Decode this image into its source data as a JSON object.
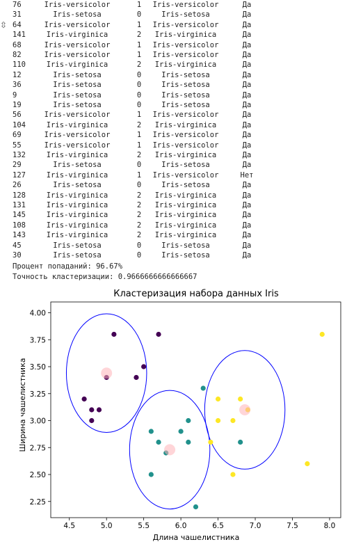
{
  "output": {
    "rows": [
      {
        "idx": "76",
        "true_label": "Iris-versicolor",
        "cluster": "1",
        "predicted": "Iris-versicolor",
        "match": "Да"
      },
      {
        "idx": "31",
        "true_label": "Iris-setosa",
        "cluster": "0",
        "predicted": "Iris-setosa",
        "match": "Да"
      },
      {
        "idx": "64",
        "true_label": "Iris-versicolor",
        "cluster": "1",
        "predicted": "Iris-versicolor",
        "match": "Да"
      },
      {
        "idx": "141",
        "true_label": "Iris-virginica",
        "cluster": "2",
        "predicted": "Iris-virginica",
        "match": "Да"
      },
      {
        "idx": "68",
        "true_label": "Iris-versicolor",
        "cluster": "1",
        "predicted": "Iris-versicolor",
        "match": "Да"
      },
      {
        "idx": "82",
        "true_label": "Iris-versicolor",
        "cluster": "1",
        "predicted": "Iris-versicolor",
        "match": "Да"
      },
      {
        "idx": "110",
        "true_label": "Iris-virginica",
        "cluster": "2",
        "predicted": "Iris-virginica",
        "match": "Да"
      },
      {
        "idx": "12",
        "true_label": "Iris-setosa",
        "cluster": "0",
        "predicted": "Iris-setosa",
        "match": "Да"
      },
      {
        "idx": "36",
        "true_label": "Iris-setosa",
        "cluster": "0",
        "predicted": "Iris-setosa",
        "match": "Да"
      },
      {
        "idx": "9",
        "true_label": "Iris-setosa",
        "cluster": "0",
        "predicted": "Iris-setosa",
        "match": "Да"
      },
      {
        "idx": "19",
        "true_label": "Iris-setosa",
        "cluster": "0",
        "predicted": "Iris-setosa",
        "match": "Да"
      },
      {
        "idx": "56",
        "true_label": "Iris-versicolor",
        "cluster": "1",
        "predicted": "Iris-versicolor",
        "match": "Да"
      },
      {
        "idx": "104",
        "true_label": "Iris-virginica",
        "cluster": "2",
        "predicted": "Iris-virginica",
        "match": "Да"
      },
      {
        "idx": "69",
        "true_label": "Iris-versicolor",
        "cluster": "1",
        "predicted": "Iris-versicolor",
        "match": "Да"
      },
      {
        "idx": "55",
        "true_label": "Iris-versicolor",
        "cluster": "1",
        "predicted": "Iris-versicolor",
        "match": "Да"
      },
      {
        "idx": "132",
        "true_label": "Iris-virginica",
        "cluster": "2",
        "predicted": "Iris-virginica",
        "match": "Да"
      },
      {
        "idx": "29",
        "true_label": "Iris-setosa",
        "cluster": "0",
        "predicted": "Iris-setosa",
        "match": "Да"
      },
      {
        "idx": "127",
        "true_label": "Iris-virginica",
        "cluster": "1",
        "predicted": "Iris-versicolor",
        "match": "Нет"
      },
      {
        "idx": "26",
        "true_label": "Iris-setosa",
        "cluster": "0",
        "predicted": "Iris-setosa",
        "match": "Да"
      },
      {
        "idx": "128",
        "true_label": "Iris-virginica",
        "cluster": "2",
        "predicted": "Iris-virginica",
        "match": "Да"
      },
      {
        "idx": "131",
        "true_label": "Iris-virginica",
        "cluster": "2",
        "predicted": "Iris-virginica",
        "match": "Да"
      },
      {
        "idx": "145",
        "true_label": "Iris-virginica",
        "cluster": "2",
        "predicted": "Iris-virginica",
        "match": "Да"
      },
      {
        "idx": "108",
        "true_label": "Iris-virginica",
        "cluster": "2",
        "predicted": "Iris-virginica",
        "match": "Да"
      },
      {
        "idx": "143",
        "true_label": "Iris-virginica",
        "cluster": "2",
        "predicted": "Iris-virginica",
        "match": "Да"
      },
      {
        "idx": "45",
        "true_label": "Iris-setosa",
        "cluster": "0",
        "predicted": "Iris-setosa",
        "match": "Да"
      },
      {
        "idx": "30",
        "true_label": "Iris-setosa",
        "cluster": "0",
        "predicted": "Iris-setosa",
        "match": "Да"
      }
    ],
    "hit_percent_line": "Процент попаданий: 96.67%",
    "accuracy_line": "Точность кластеризации: 0.9666666666666667"
  },
  "gutter_icon": "collapse-output-icon",
  "chart_data": {
    "type": "scatter",
    "title": "Кластеризация набора данных Iris",
    "xlabel": "Длина чашелистника",
    "ylabel": "Ширина чашелистника",
    "xlim": [
      4.25,
      8.15
    ],
    "ylim": [
      2.1,
      4.1
    ],
    "xticks": [
      4.5,
      5.0,
      5.5,
      6.0,
      6.5,
      7.0,
      7.5,
      8.0
    ],
    "xtick_labels": [
      "4.5",
      "5.0",
      "5.5",
      "6.0",
      "6.5",
      "7.0",
      "7.5",
      "8.0"
    ],
    "yticks": [
      2.25,
      2.5,
      2.75,
      3.0,
      3.25,
      3.5,
      3.75,
      4.0
    ],
    "ytick_labels": [
      "2.25",
      "2.50",
      "2.75",
      "3.00",
      "3.25",
      "3.50",
      "3.75",
      "4.00"
    ],
    "grid": false,
    "legend": "none",
    "cluster_colors": [
      "#440154",
      "#21918c",
      "#fde725"
    ],
    "ellipse_color": "#0000ff",
    "center_color": "#ffb3b8",
    "points": [
      {
        "x": 5.1,
        "y": 3.8,
        "cluster": 0
      },
      {
        "x": 5.7,
        "y": 3.8,
        "cluster": 0
      },
      {
        "x": 5.5,
        "y": 3.5,
        "cluster": 0
      },
      {
        "x": 5.0,
        "y": 3.4,
        "cluster": 0
      },
      {
        "x": 5.4,
        "y": 3.4,
        "cluster": 0
      },
      {
        "x": 4.7,
        "y": 3.2,
        "cluster": 0
      },
      {
        "x": 4.8,
        "y": 3.1,
        "cluster": 0
      },
      {
        "x": 4.9,
        "y": 3.1,
        "cluster": 0
      },
      {
        "x": 4.8,
        "y": 3.0,
        "cluster": 0
      },
      {
        "x": 6.3,
        "y": 3.3,
        "cluster": 1
      },
      {
        "x": 6.1,
        "y": 3.0,
        "cluster": 1
      },
      {
        "x": 5.6,
        "y": 2.9,
        "cluster": 1
      },
      {
        "x": 6.0,
        "y": 2.9,
        "cluster": 1
      },
      {
        "x": 5.7,
        "y": 2.8,
        "cluster": 1
      },
      {
        "x": 6.1,
        "y": 2.8,
        "cluster": 1
      },
      {
        "x": 6.8,
        "y": 2.8,
        "cluster": 1
      },
      {
        "x": 5.8,
        "y": 2.7,
        "cluster": 1
      },
      {
        "x": 5.6,
        "y": 2.5,
        "cluster": 1
      },
      {
        "x": 6.2,
        "y": 2.2,
        "cluster": 1
      },
      {
        "x": 7.9,
        "y": 3.8,
        "cluster": 2
      },
      {
        "x": 6.5,
        "y": 3.2,
        "cluster": 2
      },
      {
        "x": 6.8,
        "y": 3.2,
        "cluster": 2
      },
      {
        "x": 6.9,
        "y": 3.1,
        "cluster": 2
      },
      {
        "x": 6.5,
        "y": 3.0,
        "cluster": 2
      },
      {
        "x": 6.7,
        "y": 3.0,
        "cluster": 2
      },
      {
        "x": 6.4,
        "y": 2.8,
        "cluster": 2
      },
      {
        "x": 7.7,
        "y": 2.6,
        "cluster": 2
      },
      {
        "x": 6.7,
        "y": 2.5,
        "cluster": 2
      }
    ],
    "centers": [
      {
        "x": 5.0,
        "y": 3.44
      },
      {
        "x": 5.85,
        "y": 2.73
      },
      {
        "x": 6.86,
        "y": 3.1
      }
    ],
    "ellipses": [
      {
        "cx": 5.0,
        "cy": 3.44,
        "rx": 0.54,
        "ry": 0.55
      },
      {
        "cx": 5.85,
        "cy": 2.73,
        "rx": 0.54,
        "ry": 0.55
      },
      {
        "cx": 6.86,
        "cy": 3.1,
        "rx": 0.54,
        "ry": 0.55
      }
    ]
  }
}
